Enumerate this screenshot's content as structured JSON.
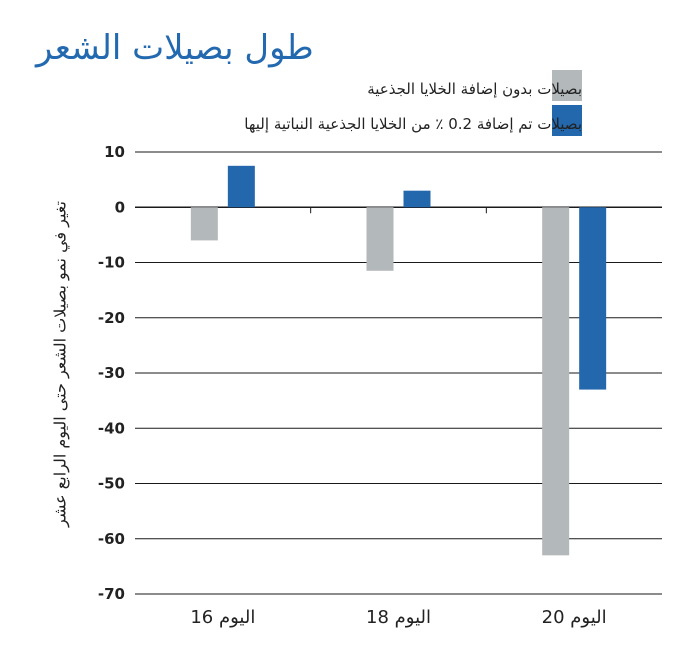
{
  "chart_data": {
    "type": "bar",
    "title": "طول بصيلات الشعر",
    "ylabel": "تغير في نمو بصيلات الشعر حتى اليوم الرابع عشر",
    "xlabel": "",
    "categories": [
      "اليوم 16",
      "اليوم 18",
      "اليوم 20"
    ],
    "series": [
      {
        "name": "بصيلات بدون إضافة الخلايا الجذعية",
        "color": "#b3b8ba",
        "values": [
          -6,
          -11.5,
          -63
        ]
      },
      {
        "name": "بصيلات تم إضافة 0.2 ٪ من الخلايا الجذعية النباتية إليها",
        "color": "#2367ad",
        "values": [
          7.5,
          3,
          -33
        ]
      }
    ],
    "ylim": [
      -70,
      10
    ],
    "yticks": [
      10,
      0,
      -10,
      -20,
      -30,
      -40,
      -50,
      -60,
      -70
    ],
    "grid": true,
    "legend_position": "top"
  }
}
